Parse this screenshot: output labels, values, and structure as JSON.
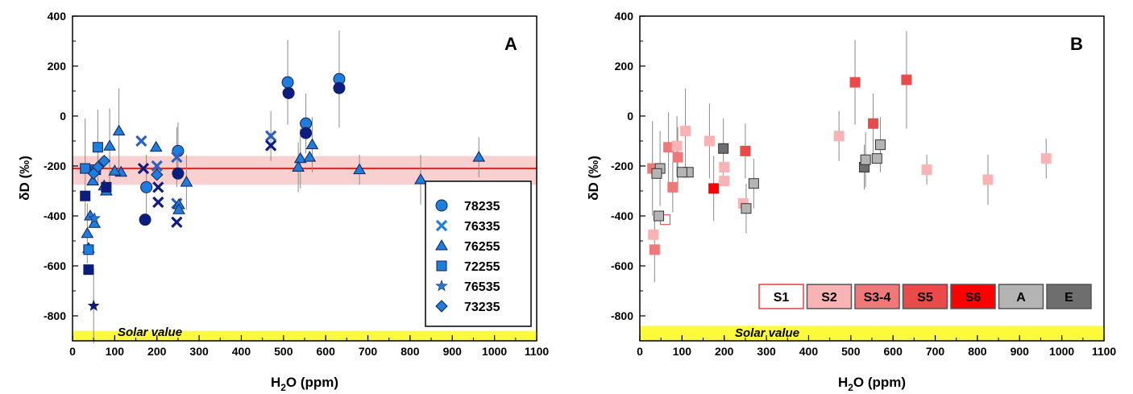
{
  "chart_data": [
    {
      "id": "A",
      "type": "scatter",
      "panel_label": "A",
      "ylabel": "δD (‰)",
      "xlabel_main": "H",
      "xlabel_sub": "2",
      "xlabel_rest": "O (ppm)",
      "xlim": [
        0,
        1100
      ],
      "ylim": [
        -900,
        400
      ],
      "xticks": [
        0,
        100,
        200,
        300,
        400,
        500,
        600,
        700,
        800,
        900,
        1000,
        1100
      ],
      "yticks": [
        -800,
        -600,
        -400,
        -200,
        0,
        200,
        400
      ],
      "band": {
        "value": -210,
        "low": -275,
        "high": -160,
        "line_color": "#e0201c",
        "fill_color": "#f7c8c8"
      },
      "solar": {
        "label": "Solar value",
        "low": -900,
        "high": -860,
        "color": "#fbfb3c"
      },
      "legend": [
        {
          "name": "78235",
          "marker": "circle"
        },
        {
          "name": "76335",
          "marker": "x"
        },
        {
          "name": "76255",
          "marker": "triangle"
        },
        {
          "name": "72255",
          "marker": "square"
        },
        {
          "name": "76535",
          "marker": "star"
        },
        {
          "name": "73235",
          "marker": "diamond"
        }
      ],
      "colors": {
        "light": "#1f7ddb",
        "dark": "#0c1c80",
        "mid": "#2e5fc2"
      },
      "points": [
        {
          "m": "circle",
          "x": 510,
          "y": 135,
          "c": "light",
          "e": 170
        },
        {
          "m": "circle",
          "x": 512,
          "y": 92,
          "c": "dark",
          "e": 0
        },
        {
          "m": "circle",
          "x": 632,
          "y": 148,
          "c": "light",
          "e": 195
        },
        {
          "m": "circle",
          "x": 632,
          "y": 112,
          "c": "dark",
          "e": 0
        },
        {
          "m": "circle",
          "x": 553,
          "y": -30,
          "c": "light",
          "e": 120
        },
        {
          "m": "circle",
          "x": 553,
          "y": -68,
          "c": "dark",
          "e": 0
        },
        {
          "m": "circle",
          "x": 250,
          "y": -140,
          "c": "light",
          "e": 115
        },
        {
          "m": "circle",
          "x": 250,
          "y": -230,
          "c": "dark",
          "e": 0
        },
        {
          "m": "circle",
          "x": 175,
          "y": -285,
          "c": "light",
          "e": 130
        },
        {
          "m": "circle",
          "x": 172,
          "y": -415,
          "c": "dark",
          "e": 0
        },
        {
          "m": "x",
          "x": 163,
          "y": -100,
          "c": "mid",
          "e": 0
        },
        {
          "m": "x",
          "x": 470,
          "y": -80,
          "c": "mid",
          "e": 100
        },
        {
          "m": "x",
          "x": 470,
          "y": -118,
          "c": "dark",
          "e": 0
        },
        {
          "m": "x",
          "x": 200,
          "y": -200,
          "c": "mid",
          "e": 0
        },
        {
          "m": "x",
          "x": 203,
          "y": -285,
          "c": "dark",
          "e": 0
        },
        {
          "m": "x",
          "x": 203,
          "y": -345,
          "c": "dark",
          "e": 0
        },
        {
          "m": "x",
          "x": 247,
          "y": -165,
          "c": "mid",
          "e": 120
        },
        {
          "m": "x",
          "x": 247,
          "y": -350,
          "c": "mid",
          "e": 0
        },
        {
          "m": "x",
          "x": 247,
          "y": -425,
          "c": "dark",
          "e": 0
        },
        {
          "m": "x",
          "x": 168,
          "y": -210,
          "c": "dark",
          "e": 0
        },
        {
          "m": "triangle",
          "x": 110,
          "y": -60,
          "c": "light",
          "e": 170
        },
        {
          "m": "triangle",
          "x": 198,
          "y": -125,
          "c": "light",
          "e": 0
        },
        {
          "m": "triangle",
          "x": 88,
          "y": -120,
          "c": "light",
          "e": 150
        },
        {
          "m": "triangle",
          "x": 568,
          "y": -115,
          "c": "light",
          "e": 110
        },
        {
          "m": "triangle",
          "x": 540,
          "y": -170,
          "c": "light",
          "e": 120
        },
        {
          "m": "triangle",
          "x": 562,
          "y": -165,
          "c": "light",
          "e": 0
        },
        {
          "m": "triangle",
          "x": 535,
          "y": -205,
          "c": "light",
          "e": 100
        },
        {
          "m": "triangle",
          "x": 680,
          "y": -215,
          "c": "light",
          "e": 60
        },
        {
          "m": "triangle",
          "x": 825,
          "y": -255,
          "c": "light",
          "e": 100
        },
        {
          "m": "triangle",
          "x": 963,
          "y": -165,
          "c": "light",
          "e": 80
        },
        {
          "m": "triangle",
          "x": 270,
          "y": -265,
          "c": "light",
          "e": 110
        },
        {
          "m": "triangle",
          "x": 252,
          "y": -355,
          "c": "light",
          "e": 0
        },
        {
          "m": "triangle",
          "x": 252,
          "y": -375,
          "c": "light",
          "e": 0
        },
        {
          "m": "triangle",
          "x": 115,
          "y": -225,
          "c": "light",
          "e": 0
        },
        {
          "m": "triangle",
          "x": 100,
          "y": -220,
          "c": "light",
          "e": 0
        },
        {
          "m": "triangle",
          "x": 75,
          "y": -280,
          "c": "light",
          "e": 0
        },
        {
          "m": "triangle",
          "x": 80,
          "y": -300,
          "c": "light",
          "e": 0
        },
        {
          "m": "triangle",
          "x": 35,
          "y": -470,
          "c": "light",
          "e": 120
        },
        {
          "m": "triangle",
          "x": 42,
          "y": -400,
          "c": "light",
          "e": 0
        },
        {
          "m": "triangle",
          "x": 38,
          "y": -530,
          "c": "light",
          "e": 0
        },
        {
          "m": "triangle",
          "x": 52,
          "y": -430,
          "c": "light",
          "e": 0
        },
        {
          "m": "triangle",
          "x": 48,
          "y": -260,
          "c": "light",
          "e": 0
        },
        {
          "m": "square",
          "x": 60,
          "y": -125,
          "c": "light",
          "e": 150
        },
        {
          "m": "square",
          "x": 30,
          "y": -210,
          "c": "light",
          "e": 200
        },
        {
          "m": "square",
          "x": 30,
          "y": -320,
          "c": "dark",
          "e": 0
        },
        {
          "m": "square",
          "x": 38,
          "y": -535,
          "c": "light",
          "e": 0
        },
        {
          "m": "square",
          "x": 38,
          "y": -615,
          "c": "dark",
          "e": 0
        },
        {
          "m": "square",
          "x": 55,
          "y": -215,
          "c": "light",
          "e": 0
        },
        {
          "m": "square",
          "x": 80,
          "y": -285,
          "c": "dark",
          "e": 0
        },
        {
          "m": "star",
          "x": 50,
          "y": -760,
          "c": "dark",
          "e": 150
        },
        {
          "m": "star",
          "x": 52,
          "y": -410,
          "c": "light",
          "e": 0
        },
        {
          "m": "diamond",
          "x": 200,
          "y": -235,
          "c": "light",
          "e": 0
        },
        {
          "m": "diamond",
          "x": 75,
          "y": -180,
          "c": "light",
          "e": 0
        },
        {
          "m": "diamond",
          "x": 60,
          "y": -205,
          "c": "light",
          "e": 0
        },
        {
          "m": "diamond",
          "x": 50,
          "y": -230,
          "c": "light",
          "e": 0
        }
      ]
    },
    {
      "id": "B",
      "type": "scatter",
      "panel_label": "B",
      "ylabel": "δD (‰)",
      "xlabel_main": "H",
      "xlabel_sub": "2",
      "xlabel_rest": "O (ppm)",
      "xlim": [
        0,
        1100
      ],
      "ylim": [
        -900,
        400
      ],
      "xticks": [
        0,
        100,
        200,
        300,
        400,
        500,
        600,
        700,
        800,
        900,
        1000,
        1100
      ],
      "yticks": [
        -800,
        -600,
        -400,
        -200,
        0,
        200,
        400
      ],
      "solar": {
        "label": "Solar value",
        "low": -900,
        "high": -840,
        "color": "#fbfb3c"
      },
      "legend": [
        {
          "name": "S1",
          "fill": "#ffffff",
          "stroke": "#e04040"
        },
        {
          "name": "S2",
          "fill": "#f8b4b4",
          "stroke": "#f8b4b4"
        },
        {
          "name": "S3-4",
          "fill": "#ef7878",
          "stroke": "#ef7878"
        },
        {
          "name": "S5",
          "fill": "#ea4a4a",
          "stroke": "#ea4a4a"
        },
        {
          "name": "S6",
          "fill": "#ff0000",
          "stroke": "#ff0000"
        },
        {
          "name": "A",
          "fill": "#b4b4b4",
          "stroke": "#b4b4b4"
        },
        {
          "name": "E",
          "fill": "#6e6e6e",
          "stroke": "#6e6e6e"
        }
      ],
      "points": [
        {
          "x": 510,
          "y": 135,
          "g": "S5",
          "e": 170
        },
        {
          "x": 632,
          "y": 145,
          "g": "S5",
          "e": 195
        },
        {
          "x": 553,
          "y": -30,
          "g": "S5",
          "e": 120
        },
        {
          "x": 250,
          "y": -140,
          "g": "S5",
          "e": 110
        },
        {
          "x": 175,
          "y": -290,
          "g": "S6",
          "e": 130
        },
        {
          "x": 35,
          "y": -535,
          "g": "S3-4",
          "e": 130
        },
        {
          "x": 30,
          "y": -210,
          "g": "S3-4",
          "e": 190
        },
        {
          "x": 68,
          "y": -125,
          "g": "S3-4",
          "e": 140
        },
        {
          "x": 90,
          "y": -165,
          "g": "S3-4",
          "e": 120
        },
        {
          "x": 78,
          "y": -285,
          "g": "S3-4",
          "e": 100
        },
        {
          "x": 165,
          "y": -100,
          "g": "S2",
          "e": 150
        },
        {
          "x": 108,
          "y": -60,
          "g": "S2",
          "e": 170
        },
        {
          "x": 88,
          "y": -120,
          "g": "S2",
          "e": 120
        },
        {
          "x": 200,
          "y": -205,
          "g": "S2",
          "e": 0
        },
        {
          "x": 200,
          "y": -260,
          "g": "S2",
          "e": 0
        },
        {
          "x": 245,
          "y": -350,
          "g": "S2",
          "e": 0
        },
        {
          "x": 472,
          "y": -80,
          "g": "S2",
          "e": 100
        },
        {
          "x": 680,
          "y": -215,
          "g": "S2",
          "e": 60
        },
        {
          "x": 825,
          "y": -255,
          "g": "S2",
          "e": 100
        },
        {
          "x": 963,
          "y": -170,
          "g": "S2",
          "e": 80
        },
        {
          "x": 32,
          "y": -475,
          "g": "S2",
          "e": 0
        },
        {
          "x": 60,
          "y": -415,
          "g": "S1",
          "e": 0
        },
        {
          "x": 198,
          "y": -130,
          "g": "E",
          "e": 120
        },
        {
          "x": 532,
          "y": -205,
          "g": "E",
          "e": 90
        },
        {
          "x": 570,
          "y": -115,
          "g": "A",
          "e": 110
        },
        {
          "x": 535,
          "y": -175,
          "g": "A",
          "e": 110
        },
        {
          "x": 562,
          "y": -170,
          "g": "A",
          "e": 0
        },
        {
          "x": 270,
          "y": -270,
          "g": "A",
          "e": 100
        },
        {
          "x": 252,
          "y": -370,
          "g": "A",
          "e": 100
        },
        {
          "x": 115,
          "y": -225,
          "g": "A",
          "e": 0
        },
        {
          "x": 100,
          "y": -225,
          "g": "A",
          "e": 0
        },
        {
          "x": 48,
          "y": -210,
          "g": "A",
          "e": 150
        },
        {
          "x": 40,
          "y": -230,
          "g": "A",
          "e": 0
        },
        {
          "x": 45,
          "y": -400,
          "g": "A",
          "e": 0
        }
      ]
    }
  ]
}
